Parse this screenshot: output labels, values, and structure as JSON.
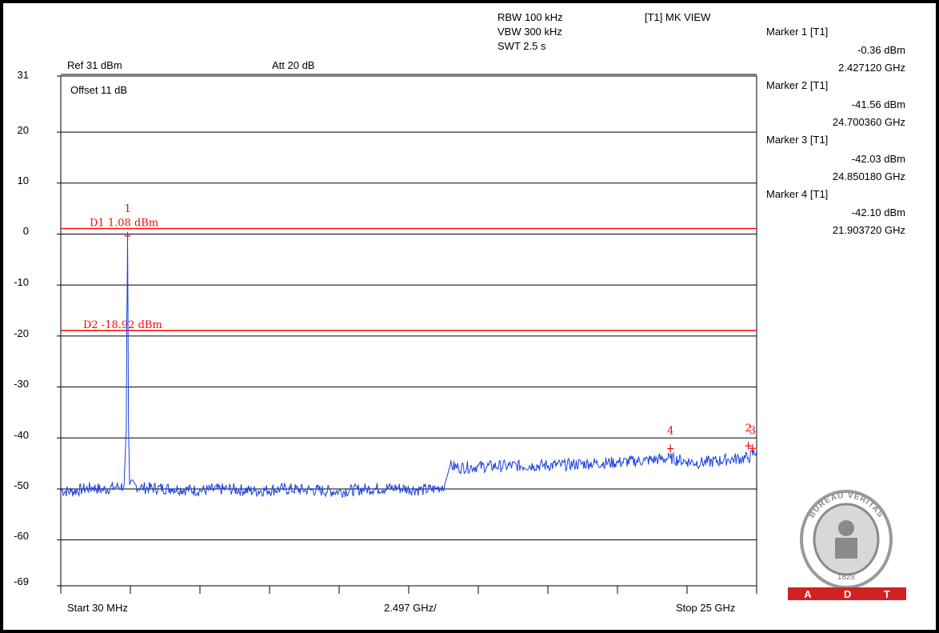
{
  "header": {
    "rbw": "RBW 100 kHz",
    "vbw": "VBW 300 kHz",
    "swt": "SWT 2.5 s",
    "view": "[T1] MK VIEW",
    "ref": "Ref 31 dBm",
    "att": "Att  20 dB",
    "offset": "Offset 11 dB"
  },
  "footer": {
    "start": "Start 30 MHz",
    "span": "2.497 GHz/",
    "stop": "Stop 25 GHz"
  },
  "markers": [
    {
      "title": "Marker 1 [T1]",
      "level": "-0.36 dBm",
      "freq": "2.427120 GHz"
    },
    {
      "title": "Marker 2 [T1]",
      "level": "-41.56 dBm",
      "freq": "24.700360 GHz"
    },
    {
      "title": "Marker 3 [T1]",
      "level": "-42.03 dBm",
      "freq": "24.850180 GHz"
    },
    {
      "title": "Marker 4 [T1]",
      "level": "-42.10 dBm",
      "freq": "21.903720 GHz"
    }
  ],
  "logo": {
    "text": "BUREAU VERITAS",
    "year": "1828",
    "letters": [
      "A",
      "D",
      "T"
    ]
  },
  "chart_data": {
    "type": "line",
    "x_unit": "GHz",
    "y_unit": "dBm",
    "xlim": [
      0.03,
      25
    ],
    "ylim": [
      -69,
      31
    ],
    "yticks": [
      31,
      20,
      10,
      0,
      -10,
      -20,
      -30,
      -40,
      -50,
      -60,
      -69
    ],
    "ytick_labels": [
      "31",
      "20",
      "10",
      "0",
      "-10",
      "-20",
      "-30",
      "-40",
      "-50",
      "-60",
      "-69"
    ],
    "grid": true,
    "colors": {
      "trace": "#1a3fe0",
      "limit": "#ff0000",
      "grid": "#000000"
    },
    "limit_lines": [
      {
        "label": "D1 1.08 dBm",
        "value": 1.08
      },
      {
        "label": "D2 -18.92 dBm",
        "value": -18.92
      }
    ],
    "marker_points": [
      {
        "label": "1",
        "x": 2.42712,
        "y": -0.36
      },
      {
        "label": "2",
        "x": 24.70036,
        "y": -41.56
      },
      {
        "label": "3",
        "x": 24.85018,
        "y": -42.03
      },
      {
        "label": "4",
        "x": 21.90372,
        "y": -42.1
      }
    ],
    "series": [
      {
        "values": [
          [
            0.03,
            -50.3
          ],
          [
            0.4,
            -50.5
          ],
          [
            0.8,
            -50.1
          ],
          [
            1.2,
            -49.7
          ],
          [
            1.5,
            -50.2
          ],
          [
            2.0,
            -49.6
          ],
          [
            2.3,
            -49.4
          ],
          [
            2.38,
            -38.0
          ],
          [
            2.4,
            -16.0
          ],
          [
            2.41,
            -13.5
          ],
          [
            2.427,
            -0.36
          ],
          [
            2.44,
            -14.5
          ],
          [
            2.46,
            -38.0
          ],
          [
            2.5,
            -49.2
          ],
          [
            3.0,
            -49.8
          ],
          [
            4.0,
            -49.9
          ],
          [
            5.0,
            -50.3
          ],
          [
            6.0,
            -50.0
          ],
          [
            7.0,
            -50.4
          ],
          [
            8.0,
            -50.0
          ],
          [
            9.0,
            -50.2
          ],
          [
            10.0,
            -50.5
          ],
          [
            11.0,
            -50.0
          ],
          [
            12.0,
            -49.8
          ],
          [
            13.0,
            -50.2
          ],
          [
            13.5,
            -50.0
          ],
          [
            13.8,
            -49.2
          ],
          [
            14.0,
            -45.5
          ],
          [
            14.3,
            -45.8
          ],
          [
            15.0,
            -45.6
          ],
          [
            16.0,
            -45.5
          ],
          [
            17.0,
            -45.4
          ],
          [
            18.0,
            -45.3
          ],
          [
            19.0,
            -45.0
          ],
          [
            20.0,
            -44.8
          ],
          [
            21.0,
            -44.4
          ],
          [
            21.9,
            -44.0
          ],
          [
            22.5,
            -44.6
          ],
          [
            23.0,
            -44.9
          ],
          [
            24.0,
            -44.2
          ],
          [
            24.7,
            -43.9
          ],
          [
            25.0,
            -42.5
          ]
        ]
      }
    ]
  }
}
